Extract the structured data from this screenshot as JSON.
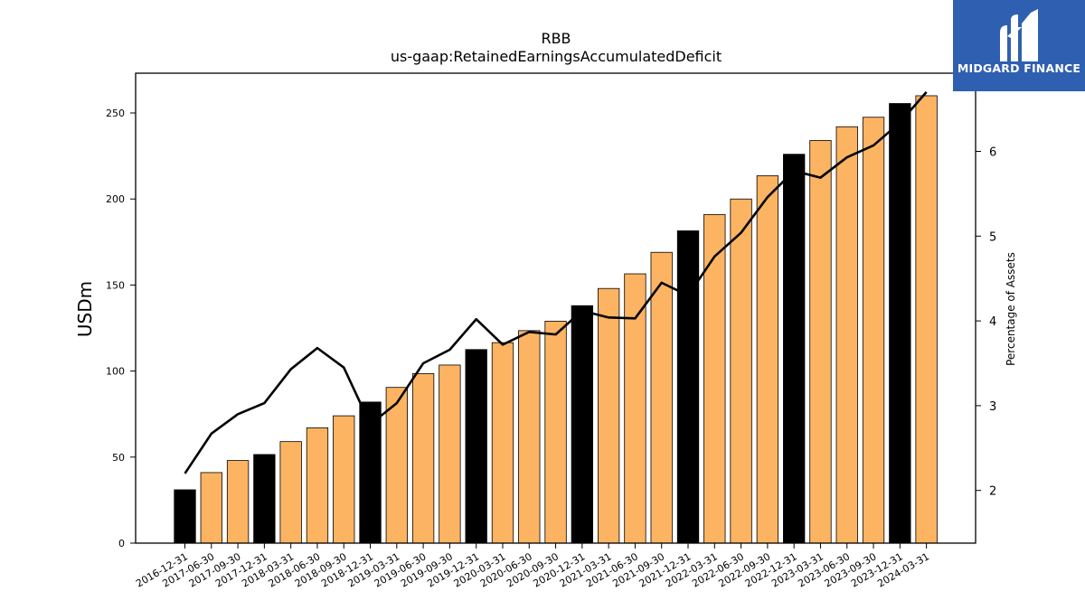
{
  "brand": {
    "name": "MIDGARD FINANCE",
    "logo_icon": "midgard-m-logo-icon",
    "background": "#2f5fb0"
  },
  "chart_data": {
    "type": "bar",
    "title": "RBB",
    "subtitle": "us-gaap:RetainedEarningsAccumulatedDeficit",
    "ylabel": "USDm",
    "y2label": "Percentage of Assets",
    "ylim": [
      0,
      273
    ],
    "y2lim": [
      1.4,
      7.3
    ],
    "yticks": [
      0,
      50,
      100,
      150,
      200,
      250
    ],
    "y2ticks": [
      2,
      3,
      4,
      5,
      6
    ],
    "colors": {
      "quarter": "#fdb462",
      "year_end": "#000000",
      "line": "#000000"
    },
    "categories": [
      "2016-12-31",
      "2017-06-30",
      "2017-09-30",
      "2017-12-31",
      "2018-03-31",
      "2018-06-30",
      "2018-09-30",
      "2018-12-31",
      "2019-03-31",
      "2019-06-30",
      "2019-09-30",
      "2019-12-31",
      "2020-03-31",
      "2020-06-30",
      "2020-09-30",
      "2020-12-31",
      "2021-03-31",
      "2021-06-30",
      "2021-09-30",
      "2021-12-31",
      "2022-03-31",
      "2022-06-30",
      "2022-09-30",
      "2022-12-31",
      "2023-03-31",
      "2023-06-30",
      "2023-09-30",
      "2023-12-31",
      "2024-03-31"
    ],
    "series": [
      {
        "type": "bar",
        "values": [
          31,
          41,
          48,
          51.5,
          59,
          67,
          74,
          82,
          90.5,
          98.5,
          103.5,
          112.5,
          116.5,
          123.5,
          129,
          138,
          148,
          156.5,
          169,
          181.5,
          191,
          200,
          213.5,
          226,
          234,
          242,
          247.5,
          255.5,
          260
        ]
      },
      {
        "type": "line",
        "axis": "right",
        "values": [
          2.2,
          2.67,
          2.9,
          3.03,
          3.43,
          3.68,
          3.45,
          2.78,
          3.03,
          3.5,
          3.66,
          4.02,
          3.72,
          3.87,
          3.84,
          4.12,
          4.04,
          4.03,
          4.45,
          4.3,
          4.76,
          5.04,
          5.46,
          5.77,
          5.69,
          5.93,
          6.07,
          6.34,
          6.7
        ]
      }
    ],
    "year_end_flags": [
      true,
      false,
      false,
      true,
      false,
      false,
      false,
      true,
      false,
      false,
      false,
      true,
      false,
      false,
      false,
      true,
      false,
      false,
      false,
      true,
      false,
      false,
      false,
      true,
      false,
      false,
      false,
      true,
      false
    ]
  }
}
